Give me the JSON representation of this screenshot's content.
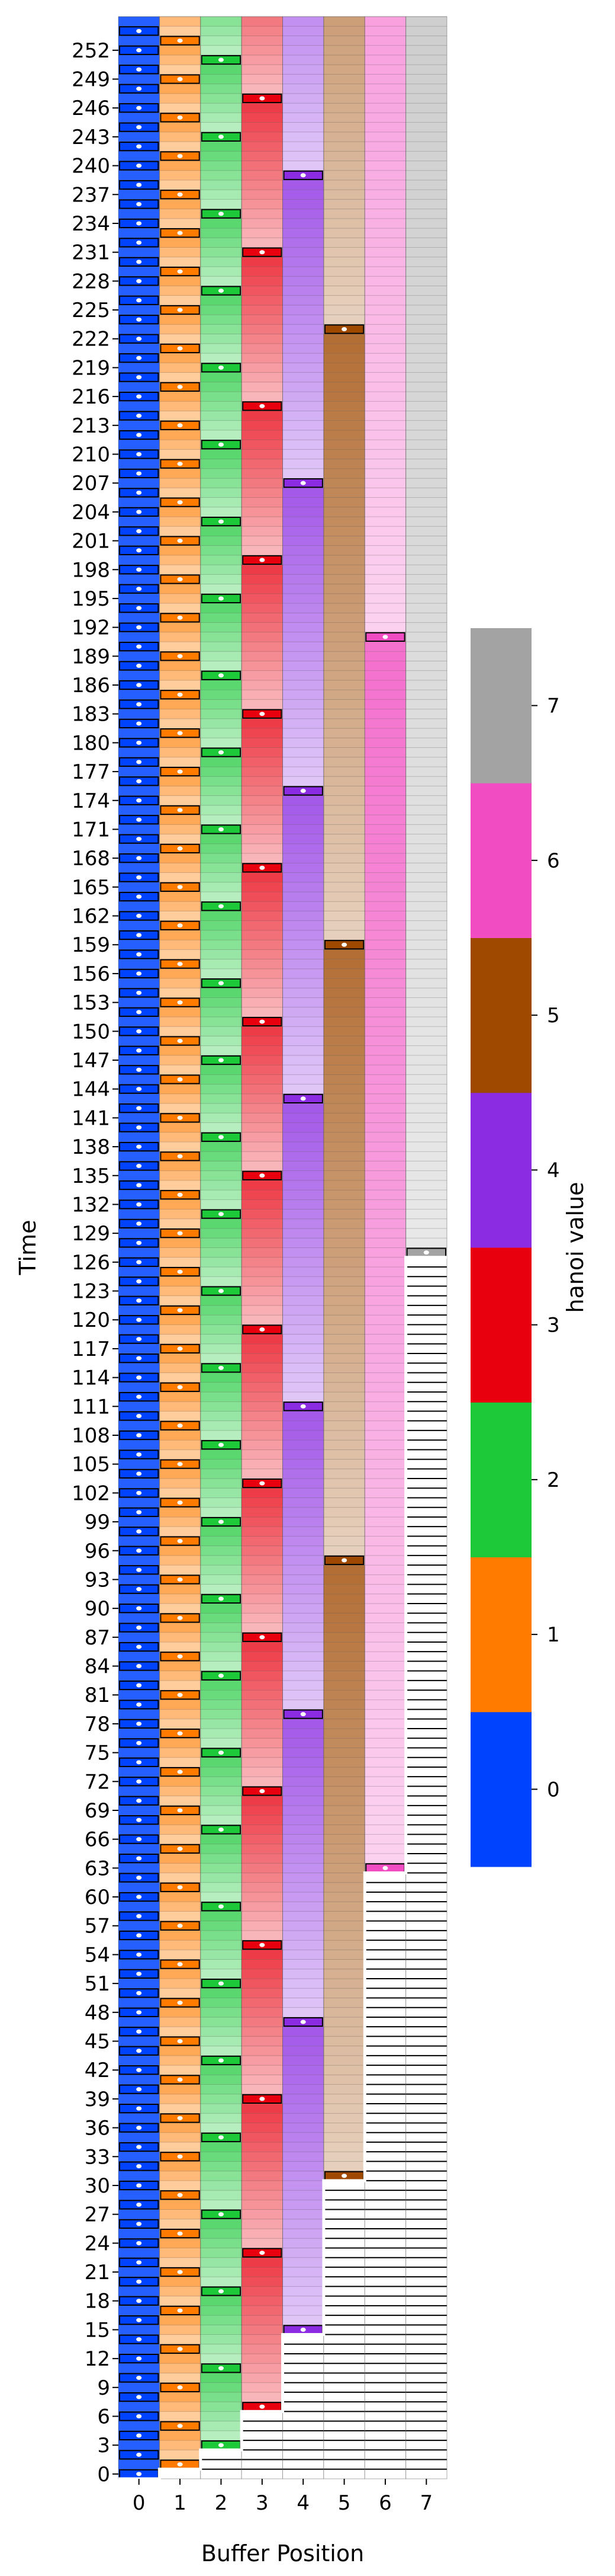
{
  "chart_data": {
    "type": "heatmap",
    "title": "",
    "xlabel": "Buffer Position",
    "ylabel": "Time",
    "x_categories": [
      "0",
      "1",
      "2",
      "3",
      "4",
      "5",
      "6",
      "7"
    ],
    "y_range": [
      0,
      255
    ],
    "y_ticks": [
      0,
      3,
      6,
      9,
      12,
      15,
      18,
      21,
      24,
      27,
      30,
      33,
      36,
      39,
      42,
      45,
      48,
      51,
      54,
      57,
      60,
      63,
      66,
      69,
      72,
      75,
      78,
      81,
      84,
      87,
      90,
      93,
      96,
      99,
      102,
      105,
      108,
      111,
      114,
      117,
      120,
      123,
      126,
      129,
      132,
      135,
      138,
      141,
      144,
      147,
      150,
      153,
      156,
      159,
      162,
      165,
      168,
      171,
      174,
      177,
      180,
      183,
      186,
      189,
      192,
      195,
      198,
      201,
      204,
      207,
      210,
      213,
      216,
      219,
      222,
      225,
      228,
      231,
      234,
      237,
      240,
      243,
      246,
      249,
      252
    ],
    "cell_rule": "buffer position p holds hanoi value p once written; position p is first written at time 2^p - 1 and rewritten every 2^(p+1) steps thereafter",
    "initial_write_times": [
      0,
      1,
      3,
      7,
      15,
      31,
      63,
      127
    ],
    "rewrite_period": [
      2,
      4,
      8,
      16,
      32,
      64,
      128,
      256
    ],
    "colorbar": {
      "label": "hanoi value",
      "ticks": [
        0,
        1,
        2,
        3,
        4,
        5,
        6,
        7
      ],
      "colors": [
        "#0043ff",
        "#ff7b00",
        "#1dc939",
        "#e8000f",
        "#8b2be2",
        "#9f4800",
        "#f14cc1",
        "#a3a3a3"
      ]
    },
    "grid": true,
    "legend": "colorbar-right"
  }
}
